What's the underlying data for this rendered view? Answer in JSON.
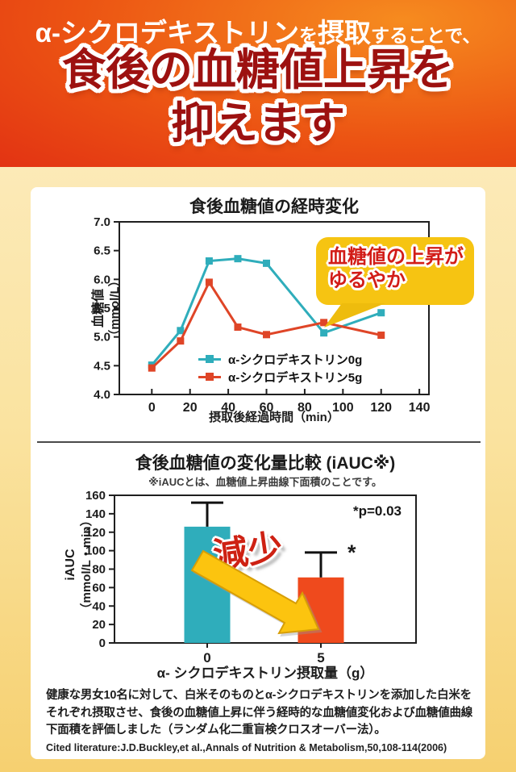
{
  "banner": {
    "tagline_parts": [
      {
        "text": "α-シクロデキストリン"
      },
      {
        "text": "を"
      },
      {
        "text": "摂取"
      },
      {
        "text": "することで、"
      }
    ],
    "headline_line1": "食後の血糖値上昇を",
    "headline_line2": "抑えます",
    "colors": {
      "headline_text": "#9d1110",
      "tagline_text": "#ffffff"
    }
  },
  "chart_data": [
    {
      "type": "line",
      "title": "食後血糖値の経時変化",
      "xlabel": "摂取後経過時間（min）",
      "ylabel_line1": "血糖値",
      "ylabel_line2": "（mmol/L）",
      "x": [
        0,
        15,
        30,
        45,
        60,
        90,
        120
      ],
      "series": [
        {
          "name": "α-シクロデキストリン0g",
          "color": "#2fadbb",
          "values": [
            4.51,
            5.11,
            6.32,
            6.36,
            6.28,
            5.07,
            5.42
          ]
        },
        {
          "name": "α-シクロデキストリン5g",
          "color": "#df4527",
          "values": [
            4.46,
            4.93,
            5.95,
            5.17,
            5.04,
            5.25,
            5.03
          ]
        }
      ],
      "xlim": [
        -17,
        145
      ],
      "xticks": [
        0,
        20,
        40,
        60,
        80,
        100,
        120,
        140
      ],
      "ylim": [
        4.0,
        7.0
      ],
      "yticks": [
        "4.0",
        "4.5",
        "5.0",
        "5.5",
        "6.0",
        "6.5",
        "7.0"
      ],
      "grid": false,
      "legend_position": "inside-bottom-center",
      "annotation_line1": "血糖値の上昇が",
      "annotation_line2": "ゆるやか",
      "annotation_target": {
        "x": 90,
        "series": "α-シクロデキストリン5g"
      }
    },
    {
      "type": "bar",
      "title": "食後血糖値の変化量比較 (iAUC※)",
      "subtitle": "※iAUCとは、血糖値上昇曲線下面積のことです。",
      "xlabel": "α- シクロデキストリン摂取量（g）",
      "ylabel_line1": "iAUC",
      "ylabel_line2": "（mmol/L・min）",
      "categories": [
        "0",
        "5"
      ],
      "values": [
        126,
        71
      ],
      "error_top": [
        152,
        98
      ],
      "colors": [
        "#2fadbb",
        "#ef4a1d"
      ],
      "ylim": [
        0,
        160
      ],
      "yticks": [
        0,
        20,
        40,
        60,
        80,
        100,
        120,
        140,
        160
      ],
      "grid": false,
      "pvalue_label": "*p=0.03",
      "significance_marker": "*",
      "decrease_label": "減少"
    }
  ],
  "study": {
    "description": "健康な男女10名に対して、白米そのものとα-シクロデキストリンを添加した白米をそれぞれ摂取させ、食後の血糖値上昇に伴う経時的な血糖値変化および血糖値曲線下面積を評価しました（ランダム化二重盲検クロスオーバー法）。",
    "citation": "Cited literature:J.D.Buckley,et al.,Annals of Nutrition & Metabolism,50,108-114(2006)"
  },
  "colors": {
    "background_top": "#fdeec6",
    "background_bottom": "#f6d070",
    "banner_orange": "#ec5413",
    "banner_red": "#de2413",
    "card": "#ffffff",
    "bubble": "#f6c412",
    "arrow": "#fcc40f",
    "divider": "#4a4a4a"
  }
}
